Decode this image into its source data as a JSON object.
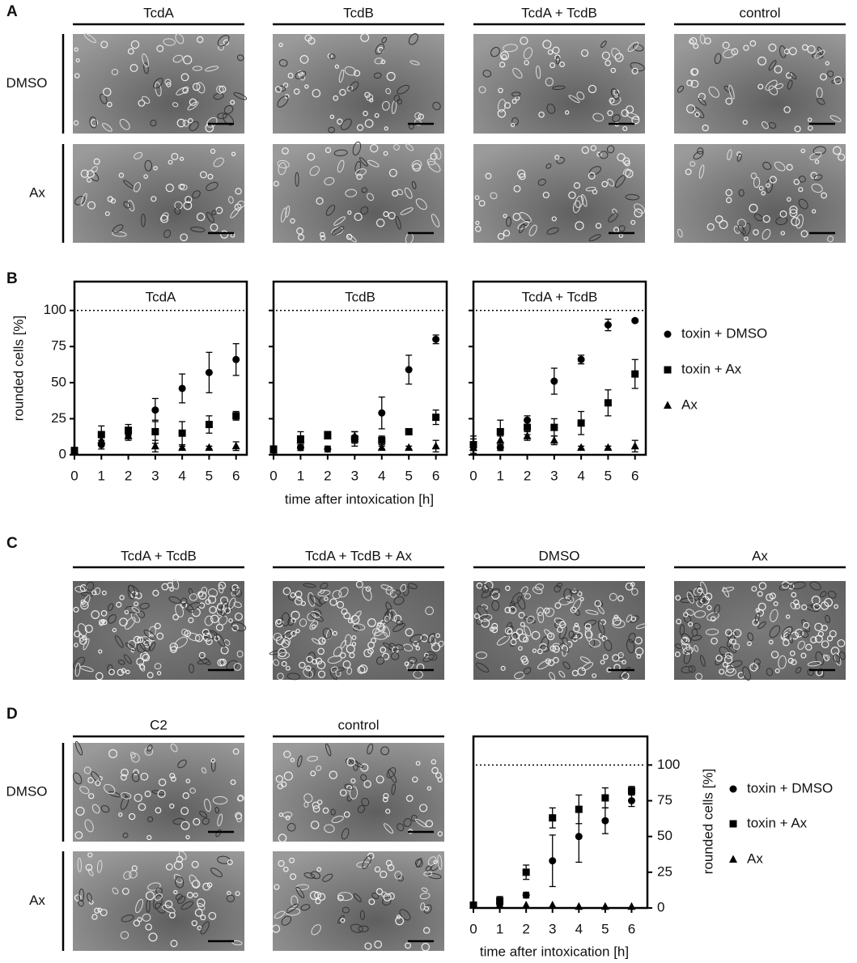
{
  "panel_labels": [
    "A",
    "B",
    "C",
    "D"
  ],
  "panel_a": {
    "columns": [
      "TcdA",
      "TcdB",
      "TcdA + TcdB",
      "control"
    ],
    "rows": [
      "DMSO",
      "Ax"
    ]
  },
  "panel_c": {
    "columns": [
      "TcdA + TcdB",
      "TcdA + TcdB + Ax",
      "DMSO",
      "Ax"
    ]
  },
  "panel_d": {
    "columns": [
      "C2",
      "control"
    ],
    "rows": [
      "DMSO",
      "Ax"
    ]
  },
  "chart_data": [
    {
      "type": "scatter",
      "ylabel": "rounded cells [%]",
      "xlabel": "time after intoxication [h]",
      "x": [
        0,
        1,
        2,
        3,
        4,
        5,
        6
      ],
      "xlim": [
        0,
        6.4
      ],
      "xticks": [
        0,
        1,
        2,
        3,
        4,
        5,
        6
      ],
      "ylim": [
        0,
        120
      ],
      "yticks": [
        0,
        25,
        50,
        75,
        100
      ],
      "reference_line": 100,
      "yaxis_side": "left",
      "series": [
        {
          "name": "toxin + DMSO",
          "marker": "circle",
          "color": "#000000"
        },
        {
          "name": "toxin + Ax",
          "marker": "square",
          "color": "#000000"
        },
        {
          "name": "Ax",
          "marker": "triangle",
          "color": "#000000"
        }
      ],
      "facets": [
        {
          "title": "TcdA",
          "values": [
            [
              3,
              7,
              15,
              31,
              46,
              57,
              66
            ],
            [
              3,
              14,
              17,
              16,
              15,
              21,
              27
            ],
            [
              3,
              10,
              13,
              6,
              5,
              5,
              6
            ]
          ],
          "errors": [
            [
              1,
              3,
              3,
              8,
              10,
              14,
              11
            ],
            [
              1,
              6,
              4,
              8,
              8,
              6,
              3
            ],
            [
              1,
              2,
              3,
              4,
              1,
              1,
              3
            ]
          ]
        },
        {
          "title": "TcdB",
          "values": [
            [
              4,
              5,
              4,
              12,
              29,
              59,
              80
            ],
            [
              4,
              11,
              14,
              11,
              10,
              16,
              26
            ],
            [
              3,
              10,
              13,
              13,
              5,
              5,
              6
            ]
          ],
          "errors": [
            [
              1,
              2,
              2,
              4,
              11,
              10,
              3
            ],
            [
              1,
              5,
              2,
              5,
              3,
              2,
              5
            ],
            [
              1,
              2,
              2,
              3,
              1,
              1,
              4
            ]
          ]
        },
        {
          "title": "TcdA + TcdB",
          "values": [
            [
              7,
              5,
              24,
              51,
              66,
              90,
              93
            ],
            [
              7,
              16,
              19,
              19,
              22,
              36,
              56
            ],
            [
              5,
              10,
              13,
              10,
              5,
              5,
              6
            ]
          ],
          "errors": [
            [
              4,
              2,
              3,
              9,
              3,
              4,
              1
            ],
            [
              6,
              8,
              5,
              6,
              8,
              9,
              10
            ],
            [
              2,
              3,
              3,
              3,
              1,
              1,
              4
            ]
          ]
        }
      ]
    },
    {
      "type": "scatter",
      "ylabel": "rounded cells [%]",
      "xlabel": "time after intoxication [h]",
      "x": [
        0,
        1,
        2,
        3,
        4,
        5,
        6
      ],
      "xlim": [
        0,
        6.6
      ],
      "xticks": [
        0,
        1,
        2,
        3,
        4,
        5,
        6
      ],
      "ylim": [
        0,
        120
      ],
      "yticks": [
        0,
        25,
        50,
        75,
        100
      ],
      "reference_line": 100,
      "yaxis_side": "right",
      "series": [
        {
          "name": "toxin + DMSO",
          "marker": "circle",
          "color": "#000000"
        },
        {
          "name": "toxin + Ax",
          "marker": "square",
          "color": "#000000"
        },
        {
          "name": "Ax",
          "marker": "triangle",
          "color": "#000000"
        }
      ],
      "facets": [
        {
          "values": [
            [
              2,
              3,
              9,
              33,
              50,
              61,
              75
            ],
            [
              2,
              5,
              25,
              63,
              69,
              77,
              82
            ],
            [
              2,
              2,
              2,
              2,
              1,
              1,
              1
            ]
          ],
          "errors": [
            [
              1,
              2,
              2,
              18,
              18,
              9,
              4
            ],
            [
              1,
              3,
              5,
              7,
              10,
              7,
              3
            ],
            [
              0,
              0,
              0,
              0,
              0,
              0,
              0
            ]
          ]
        }
      ]
    }
  ]
}
